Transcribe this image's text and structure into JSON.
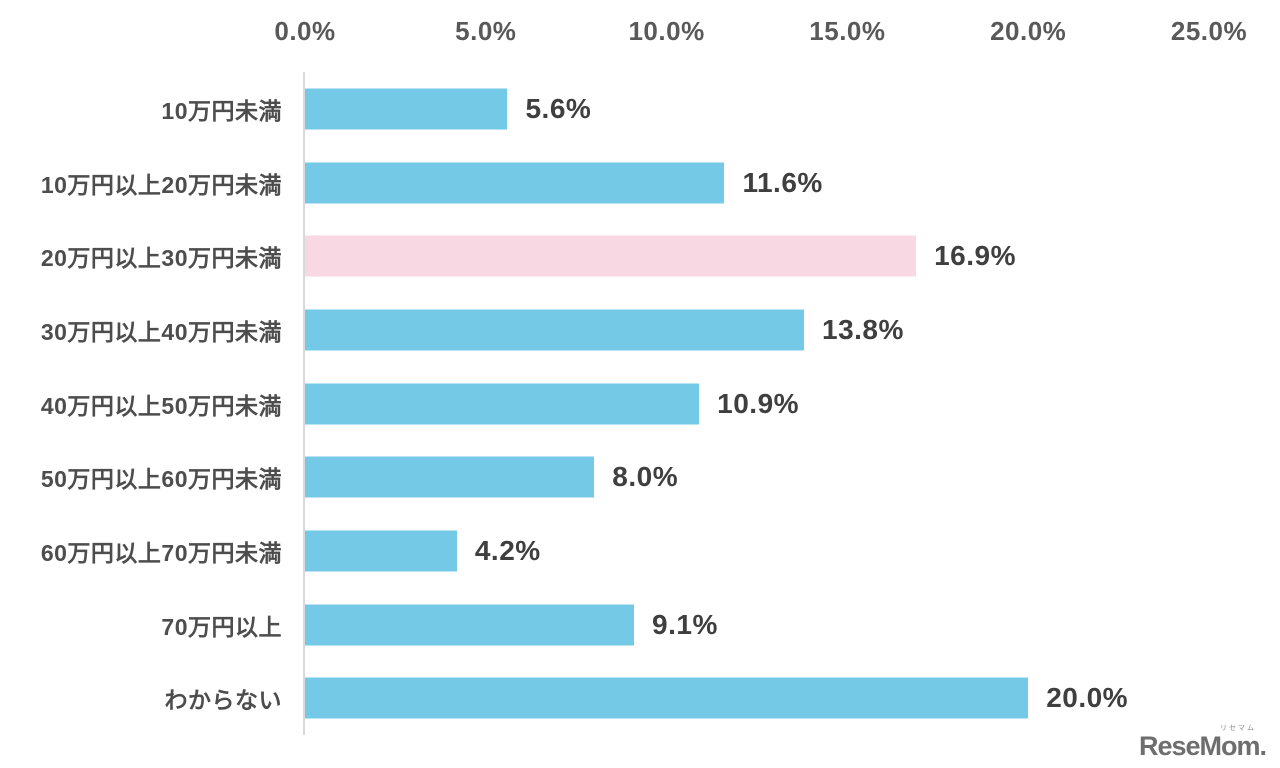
{
  "chart_data": {
    "type": "bar",
    "orientation": "horizontal",
    "title": "",
    "categories": [
      "10万円未満",
      "10万円以上20万円未満",
      "20万円以上30万円未満",
      "30万円以上40万円未満",
      "40万円以上50万円未満",
      "50万円以上60万円未満",
      "60万円以上70万円未満",
      "70万円以上",
      "わからない"
    ],
    "values": [
      5.6,
      11.6,
      16.9,
      13.8,
      10.9,
      8.0,
      4.2,
      9.1,
      20.0
    ],
    "value_labels": [
      "5.6%",
      "11.6%",
      "16.9%",
      "13.8%",
      "10.9%",
      "8.0%",
      "4.2%",
      "9.1%",
      "20.0%"
    ],
    "highlight_index": 2,
    "x_ticks": [
      "0.0%",
      "5.0%",
      "10.0%",
      "15.0%",
      "20.0%",
      "25.0%"
    ],
    "xlim": [
      0,
      25
    ],
    "grid": false,
    "legend": null,
    "colors": {
      "bar": "#74c9e7",
      "highlight": "#f8d9e3",
      "axis_line": "#d9d9d9",
      "tick_text": "#595959",
      "category_text": "#4d4d4d",
      "value_text": "#3f3f3f"
    }
  },
  "branding": {
    "logo_text": "ReseMom.",
    "logo_ruby": "リセマム"
  }
}
